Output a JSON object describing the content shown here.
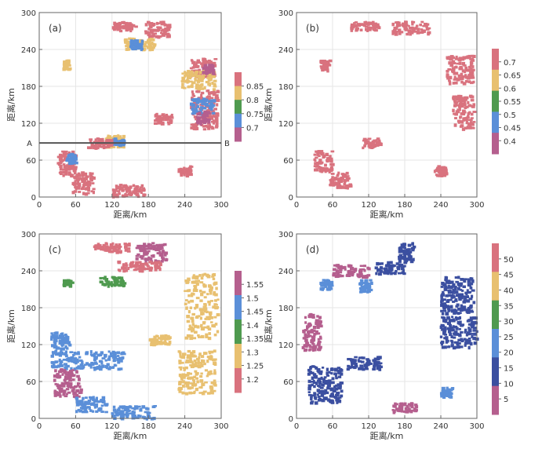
{
  "figure": {
    "x_label": "距离/km",
    "y_label": "距离/km",
    "x_ticks": [
      "0",
      "60",
      "120",
      "180",
      "240",
      "300"
    ],
    "y_ticks": [
      "0",
      "60",
      "120",
      "180",
      "240",
      "300"
    ],
    "cross_section": {
      "start_label": "A",
      "end_label": "B",
      "y_km": 88
    }
  },
  "chart_data": [
    {
      "type": "scatter",
      "panel": "(a)",
      "xlabel": "距离/km",
      "ylabel": "距离/km",
      "xlim": [
        0,
        300
      ],
      "ylim": [
        0,
        300
      ],
      "colorbar": {
        "ticks": [
          "0.85",
          "0.8",
          "0.75",
          "0.7"
        ],
        "colors": [
          "#d9727e",
          "#e8c070",
          "#4f9a4f",
          "#5b8fd8",
          "#b55f8e"
        ]
      },
      "clusters": [
        {
          "x": [
            120,
            160
          ],
          "y": [
            270,
            285
          ],
          "c": 0.85
        },
        {
          "x": [
            175,
            215
          ],
          "y": [
            260,
            285
          ],
          "c": 0.85
        },
        {
          "x": [
            250,
            290
          ],
          "y": [
            195,
            225
          ],
          "c": 0.85
        },
        {
          "x": [
            250,
            295
          ],
          "y": [
            110,
            175
          ],
          "c": 0.85
        },
        {
          "x": [
            30,
            60
          ],
          "y": [
            35,
            75
          ],
          "c": 0.85
        },
        {
          "x": [
            55,
            90
          ],
          "y": [
            5,
            40
          ],
          "c": 0.85
        },
        {
          "x": [
            40,
            50
          ],
          "y": [
            208,
            222
          ],
          "c": 0.8
        },
        {
          "x": [
            110,
            140
          ],
          "y": [
            80,
            100
          ],
          "c": 0.8
        },
        {
          "x": [
            140,
            190
          ],
          "y": [
            238,
            258
          ],
          "c": 0.8
        },
        {
          "x": [
            235,
            290
          ],
          "y": [
            175,
            205
          ],
          "c": 0.8
        },
        {
          "x": [
            250,
            290
          ],
          "y": [
            135,
            160
          ],
          "c": 0.75
        },
        {
          "x": [
            45,
            60
          ],
          "y": [
            55,
            70
          ],
          "c": 0.75
        },
        {
          "x": [
            120,
            140
          ],
          "y": [
            85,
            95
          ],
          "c": 0.75
        },
        {
          "x": [
            150,
            170
          ],
          "y": [
            240,
            255
          ],
          "c": 0.75
        },
        {
          "x": [
            260,
            280
          ],
          "y": [
            120,
            140
          ],
          "c": 0.7
        },
        {
          "x": [
            270,
            290
          ],
          "y": [
            200,
            215
          ],
          "c": 0.7
        },
        {
          "x": [
            230,
            250
          ],
          "y": [
            35,
            50
          ],
          "c": 0.85
        },
        {
          "x": [
            120,
            175
          ],
          "y": [
            0,
            20
          ],
          "c": 0.85
        },
        {
          "x": [
            190,
            220
          ],
          "y": [
            120,
            135
          ],
          "c": 0.85
        },
        {
          "x": [
            80,
            120
          ],
          "y": [
            80,
            95
          ],
          "c": 0.85
        }
      ]
    },
    {
      "type": "scatter",
      "panel": "(b)",
      "xlabel": "距离/km",
      "ylabel": "距离/km",
      "xlim": [
        0,
        300
      ],
      "ylim": [
        0,
        300
      ],
      "colorbar": {
        "ticks": [
          "0.7",
          "0.65",
          "0.6",
          "0.55",
          "0.5",
          "0.45",
          "0.4"
        ],
        "colors": [
          "#d9727e",
          "#e8c070",
          "#4f9a4f",
          "#5b8fd8",
          "#b55f8e"
        ]
      },
      "clusters": [
        {
          "x": [
            90,
            140
          ],
          "y": [
            270,
            285
          ],
          "c": 0.7
        },
        {
          "x": [
            160,
            220
          ],
          "y": [
            265,
            285
          ],
          "c": 0.7
        },
        {
          "x": [
            250,
            295
          ],
          "y": [
            185,
            230
          ],
          "c": 0.7
        },
        {
          "x": [
            260,
            295
          ],
          "y": [
            110,
            165
          ],
          "c": 0.7
        },
        {
          "x": [
            30,
            60
          ],
          "y": [
            40,
            75
          ],
          "c": 0.7
        },
        {
          "x": [
            55,
            90
          ],
          "y": [
            15,
            40
          ],
          "c": 0.7
        },
        {
          "x": [
            110,
            140
          ],
          "y": [
            80,
            95
          ],
          "c": 0.7
        },
        {
          "x": [
            230,
            250
          ],
          "y": [
            35,
            50
          ],
          "c": 0.7
        },
        {
          "x": [
            40,
            55
          ],
          "y": [
            205,
            222
          ],
          "c": 0.7
        }
      ]
    },
    {
      "type": "scatter",
      "panel": "(c)",
      "xlabel": "距离/km",
      "ylabel": "距离/km",
      "xlim": [
        0,
        300
      ],
      "ylim": [
        0,
        300
      ],
      "colorbar": {
        "ticks": [
          "1.55",
          "1.5",
          "1.45",
          "1.4",
          "1.35",
          "1.3",
          "1.25",
          "1.2"
        ],
        "colors": [
          "#b55f8e",
          "#5b8fd8",
          "#4f9a4f",
          "#e8c070",
          "#d9727e"
        ]
      },
      "clusters": [
        {
          "x": [
            240,
            295
          ],
          "y": [
            130,
            235
          ],
          "c": 1.3
        },
        {
          "x": [
            230,
            290
          ],
          "y": [
            40,
            110
          ],
          "c": 1.3
        },
        {
          "x": [
            180,
            215
          ],
          "y": [
            120,
            135
          ],
          "c": 1.3
        },
        {
          "x": [
            20,
            140
          ],
          "y": [
            80,
            110
          ],
          "c": 1.45
        },
        {
          "x": [
            20,
            50
          ],
          "y": [
            110,
            140
          ],
          "c": 1.45
        },
        {
          "x": [
            25,
            70
          ],
          "y": [
            35,
            80
          ],
          "c": 1.55
        },
        {
          "x": [
            60,
            110
          ],
          "y": [
            10,
            35
          ],
          "c": 1.45
        },
        {
          "x": [
            120,
            190
          ],
          "y": [
            0,
            20
          ],
          "c": 1.45
        },
        {
          "x": [
            90,
            150
          ],
          "y": [
            270,
            285
          ],
          "c": 1.2
        },
        {
          "x": [
            160,
            210
          ],
          "y": [
            255,
            285
          ],
          "c": 1.55
        },
        {
          "x": [
            40,
            55
          ],
          "y": [
            215,
            225
          ],
          "c": 1.35
        },
        {
          "x": [
            100,
            140
          ],
          "y": [
            215,
            230
          ],
          "c": 1.35
        },
        {
          "x": [
            130,
            200
          ],
          "y": [
            240,
            255
          ],
          "c": 1.2
        }
      ]
    },
    {
      "type": "scatter",
      "panel": "(d)",
      "xlabel": "距离/km",
      "ylabel": "距离/km",
      "xlim": [
        0,
        300
      ],
      "ylim": [
        0,
        300
      ],
      "colorbar": {
        "ticks": [
          "50",
          "45",
          "40",
          "35",
          "30",
          "25",
          "20",
          "15",
          "10",
          "5"
        ],
        "colors": [
          "#d9727e",
          "#e8c070",
          "#4f9a4f",
          "#5b8fd8",
          "#3b4fa0",
          "#b55f8e"
        ]
      },
      "clusters": [
        {
          "x": [
            20,
            75
          ],
          "y": [
            25,
            85
          ],
          "c": 15
        },
        {
          "x": [
            85,
            140
          ],
          "y": [
            80,
            100
          ],
          "c": 15
        },
        {
          "x": [
            240,
            295
          ],
          "y": [
            170,
            230
          ],
          "c": 15
        },
        {
          "x": [
            240,
            300
          ],
          "y": [
            115,
            165
          ],
          "c": 15
        },
        {
          "x": [
            130,
            180
          ],
          "y": [
            235,
            255
          ],
          "c": 15
        },
        {
          "x": [
            170,
            195
          ],
          "y": [
            255,
            285
          ],
          "c": 10
        },
        {
          "x": [
            40,
            60
          ],
          "y": [
            210,
            225
          ],
          "c": 20
        },
        {
          "x": [
            240,
            260
          ],
          "y": [
            35,
            50
          ],
          "c": 20
        },
        {
          "x": [
            105,
            125
          ],
          "y": [
            205,
            225
          ],
          "c": 20
        },
        {
          "x": [
            10,
            40
          ],
          "y": [
            110,
            170
          ],
          "c": 5
        },
        {
          "x": [
            60,
            120
          ],
          "y": [
            230,
            250
          ],
          "c": 5
        },
        {
          "x": [
            160,
            200
          ],
          "y": [
            10,
            25
          ],
          "c": 5
        }
      ]
    }
  ]
}
